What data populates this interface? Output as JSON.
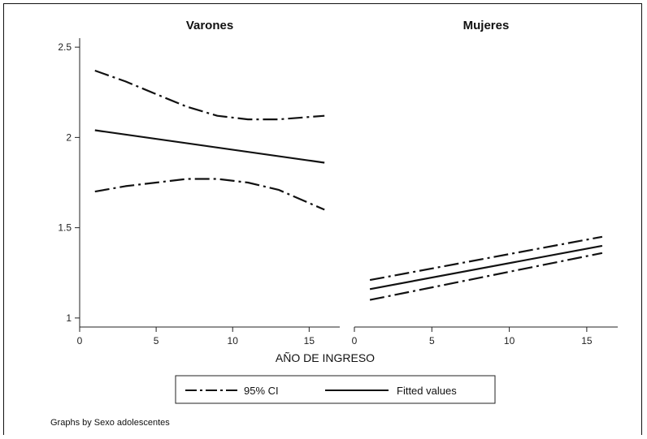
{
  "note": "Graphs by Sexo adolescentes",
  "chart_data": {
    "type": "line",
    "xlabel": "AÑO DE INGRESO",
    "xlim": [
      0,
      17
    ],
    "ylim": [
      0.95,
      2.55
    ],
    "x_ticks": [
      0,
      5,
      10,
      15
    ],
    "y_ticks": [
      1,
      1.5,
      2,
      2.5
    ],
    "grid": false,
    "legend": {
      "position": "bottom",
      "entries": [
        {
          "label": "95% CI",
          "style": "dashdot"
        },
        {
          "label": "Fitted values",
          "style": "solid"
        }
      ]
    },
    "panels": [
      {
        "title": "Varones",
        "series": [
          {
            "name": "95% CI",
            "style": "dashdot",
            "x": [
              1,
              3,
              5,
              7,
              9,
              11,
              13,
              16
            ],
            "y": [
              2.37,
              2.31,
              2.24,
              2.17,
              2.12,
              2.1,
              2.1,
              2.12
            ]
          },
          {
            "name": "Fitted values",
            "style": "solid",
            "x": [
              1,
              16
            ],
            "y": [
              2.04,
              1.86
            ]
          },
          {
            "name": "95% CI",
            "style": "dashdot",
            "x": [
              1,
              3,
              5,
              7,
              9,
              11,
              13,
              16
            ],
            "y": [
              1.7,
              1.73,
              1.75,
              1.77,
              1.77,
              1.75,
              1.71,
              1.6
            ]
          }
        ]
      },
      {
        "title": "Mujeres",
        "series": [
          {
            "name": "95% CI",
            "style": "dashdot",
            "x": [
              1,
              16
            ],
            "y": [
              1.21,
              1.45
            ]
          },
          {
            "name": "Fitted values",
            "style": "solid",
            "x": [
              1,
              16
            ],
            "y": [
              1.16,
              1.4
            ]
          },
          {
            "name": "95% CI",
            "style": "dashdot",
            "x": [
              1,
              16
            ],
            "y": [
              1.1,
              1.36
            ]
          }
        ]
      }
    ]
  }
}
